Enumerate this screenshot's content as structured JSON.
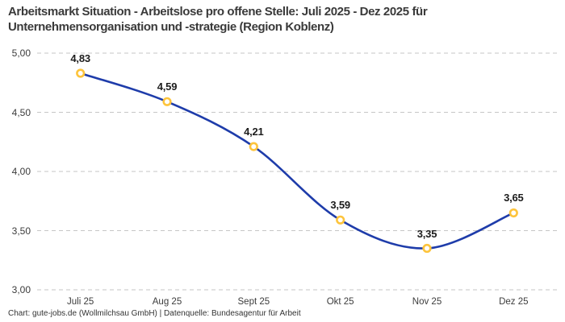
{
  "title": "Arbeitsmarkt Situation - Arbeitslose pro offene Stelle: Juli 2025 - Dez 2025 für\nUnternehmensorganisation und -strategie (Region Koblenz)",
  "source_caption": "Chart: gute-jobs.de (Wollmilchsau GmbH) | Datenquelle: Bundesagentur für Arbeit",
  "chart_data": {
    "type": "line",
    "title": "Arbeitsmarkt Situation - Arbeitslose pro offene Stelle: Juli 2025 - Dez 2025 für Unternehmensorganisation und -strategie (Region Koblenz)",
    "categories": [
      "Juli 25",
      "Aug 25",
      "Sept 25",
      "Okt 25",
      "Nov 25",
      "Dez 25"
    ],
    "values": [
      4.83,
      4.59,
      4.21,
      3.59,
      3.35,
      3.65
    ],
    "point_labels": [
      "4,83",
      "4,59",
      "4,21",
      "3,59",
      "3,35",
      "3,65"
    ],
    "y_ticks": [
      "5,00",
      "4,50",
      "4,00",
      "3,50",
      "3,00"
    ],
    "y_tick_values": [
      5.0,
      4.5,
      4.0,
      3.5,
      3.0
    ],
    "ylim": [
      3.0,
      5.0
    ],
    "xlabel": "",
    "ylabel": "",
    "legend": "none",
    "grid": "horizontal-dashed",
    "smooth": true,
    "colors": {
      "line": "#1e3caa",
      "marker_ring": "#fdc43c",
      "marker_fill": "#ffffff",
      "gridline": "#c6c6c6",
      "title_text": "#3a3a3a",
      "axis_text": "#3c3c3c",
      "label_text": "#1c1c1c"
    }
  }
}
